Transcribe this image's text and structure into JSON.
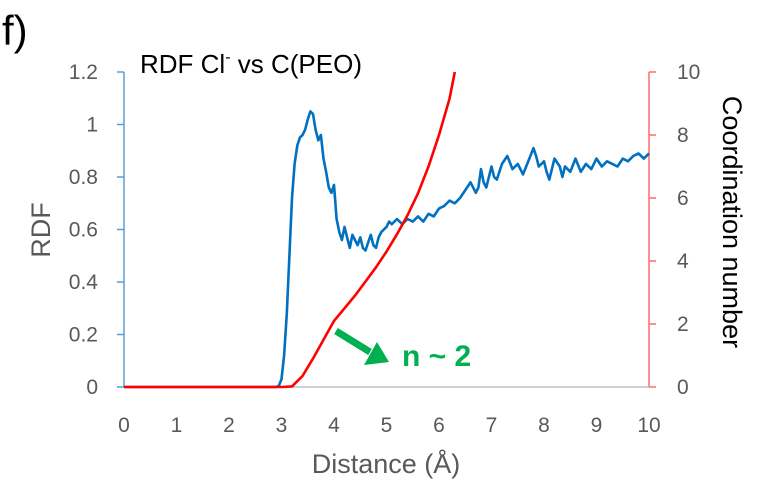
{
  "panel_label": "f)",
  "chart_data": {
    "type": "line",
    "title": "RDF Cl",
    "title_sup": "-",
    "title_rest": " vs C(PEO)",
    "xlabel": "Distance (Å)",
    "ylabel": "RDF",
    "y2label": "Coordination number",
    "xlim": [
      0,
      10
    ],
    "ylim": [
      0,
      1.2
    ],
    "y2lim": [
      0,
      10
    ],
    "x_ticks": [
      "0",
      "1",
      "2",
      "3",
      "4",
      "5",
      "6",
      "7",
      "8",
      "9",
      "10"
    ],
    "y_ticks": [
      "0",
      "0.2",
      "0.4",
      "0.6",
      "0.8",
      "1",
      "1.2"
    ],
    "y2_ticks": [
      "0",
      "2",
      "4",
      "6",
      "8",
      "10"
    ],
    "grid": false,
    "colors": {
      "rdf": "#0070c0",
      "coordination": "#ff0000",
      "annotation": "#00b050",
      "left_axis": "#5b9bd5",
      "right_axis": "#ff6b6b"
    },
    "annotation": {
      "text": "n ~ 2",
      "at": [
        4.05,
        2.2
      ]
    },
    "series": [
      {
        "axis": "left",
        "values": [
          [
            0,
            0
          ],
          [
            2.9,
            0
          ],
          [
            2.95,
            0.005
          ],
          [
            3.0,
            0.03
          ],
          [
            3.05,
            0.12
          ],
          [
            3.1,
            0.28
          ],
          [
            3.15,
            0.5
          ],
          [
            3.2,
            0.72
          ],
          [
            3.25,
            0.85
          ],
          [
            3.3,
            0.92
          ],
          [
            3.35,
            0.95
          ],
          [
            3.4,
            0.96
          ],
          [
            3.45,
            0.98
          ],
          [
            3.5,
            1.02
          ],
          [
            3.55,
            1.05
          ],
          [
            3.6,
            1.04
          ],
          [
            3.65,
            0.98
          ],
          [
            3.7,
            0.94
          ],
          [
            3.75,
            0.96
          ],
          [
            3.8,
            0.87
          ],
          [
            3.85,
            0.82
          ],
          [
            3.9,
            0.76
          ],
          [
            3.95,
            0.74
          ],
          [
            4.0,
            0.77
          ],
          [
            4.02,
            0.72
          ],
          [
            4.05,
            0.64
          ],
          [
            4.1,
            0.59
          ],
          [
            4.15,
            0.56
          ],
          [
            4.2,
            0.61
          ],
          [
            4.25,
            0.57
          ],
          [
            4.3,
            0.53
          ],
          [
            4.35,
            0.58
          ],
          [
            4.4,
            0.56
          ],
          [
            4.45,
            0.54
          ],
          [
            4.5,
            0.57
          ],
          [
            4.55,
            0.53
          ],
          [
            4.6,
            0.52
          ],
          [
            4.65,
            0.55
          ],
          [
            4.7,
            0.58
          ],
          [
            4.75,
            0.54
          ],
          [
            4.8,
            0.53
          ],
          [
            4.85,
            0.57
          ],
          [
            4.9,
            0.59
          ],
          [
            4.95,
            0.6
          ],
          [
            5.0,
            0.61
          ],
          [
            5.05,
            0.63
          ],
          [
            5.1,
            0.62
          ],
          [
            5.2,
            0.64
          ],
          [
            5.3,
            0.62
          ],
          [
            5.4,
            0.64
          ],
          [
            5.5,
            0.63
          ],
          [
            5.6,
            0.65
          ],
          [
            5.7,
            0.63
          ],
          [
            5.8,
            0.66
          ],
          [
            5.9,
            0.65
          ],
          [
            6.0,
            0.68
          ],
          [
            6.1,
            0.69
          ],
          [
            6.2,
            0.71
          ],
          [
            6.3,
            0.7
          ],
          [
            6.4,
            0.72
          ],
          [
            6.5,
            0.75
          ],
          [
            6.6,
            0.78
          ],
          [
            6.7,
            0.74
          ],
          [
            6.75,
            0.76
          ],
          [
            6.8,
            0.83
          ],
          [
            6.85,
            0.78
          ],
          [
            6.9,
            0.76
          ],
          [
            7.0,
            0.84
          ],
          [
            7.05,
            0.8
          ],
          [
            7.1,
            0.79
          ],
          [
            7.2,
            0.85
          ],
          [
            7.3,
            0.88
          ],
          [
            7.4,
            0.83
          ],
          [
            7.5,
            0.85
          ],
          [
            7.6,
            0.81
          ],
          [
            7.7,
            0.86
          ],
          [
            7.8,
            0.91
          ],
          [
            7.85,
            0.88
          ],
          [
            7.9,
            0.84
          ],
          [
            8.0,
            0.86
          ],
          [
            8.05,
            0.82
          ],
          [
            8.1,
            0.79
          ],
          [
            8.2,
            0.87
          ],
          [
            8.3,
            0.84
          ],
          [
            8.35,
            0.8
          ],
          [
            8.4,
            0.84
          ],
          [
            8.5,
            0.82
          ],
          [
            8.6,
            0.87
          ],
          [
            8.7,
            0.82
          ],
          [
            8.8,
            0.85
          ],
          [
            8.9,
            0.83
          ],
          [
            9.0,
            0.87
          ],
          [
            9.1,
            0.84
          ],
          [
            9.2,
            0.86
          ],
          [
            9.3,
            0.85
          ],
          [
            9.4,
            0.84
          ],
          [
            9.5,
            0.87
          ],
          [
            9.6,
            0.86
          ],
          [
            9.7,
            0.88
          ],
          [
            9.8,
            0.89
          ],
          [
            9.9,
            0.87
          ],
          [
            10.0,
            0.89
          ]
        ]
      },
      {
        "axis": "right",
        "values": [
          [
            0,
            0
          ],
          [
            3.0,
            0
          ],
          [
            3.2,
            0.02
          ],
          [
            3.4,
            0.35
          ],
          [
            3.6,
            0.9
          ],
          [
            3.8,
            1.5
          ],
          [
            4.0,
            2.1
          ],
          [
            4.2,
            2.5
          ],
          [
            4.4,
            2.9
          ],
          [
            4.6,
            3.35
          ],
          [
            4.8,
            3.8
          ],
          [
            5.0,
            4.3
          ],
          [
            5.2,
            4.85
          ],
          [
            5.4,
            5.45
          ],
          [
            5.6,
            6.15
          ],
          [
            5.8,
            7.0
          ],
          [
            6.0,
            8.0
          ],
          [
            6.2,
            9.15
          ],
          [
            6.3,
            10.0
          ]
        ]
      }
    ]
  }
}
